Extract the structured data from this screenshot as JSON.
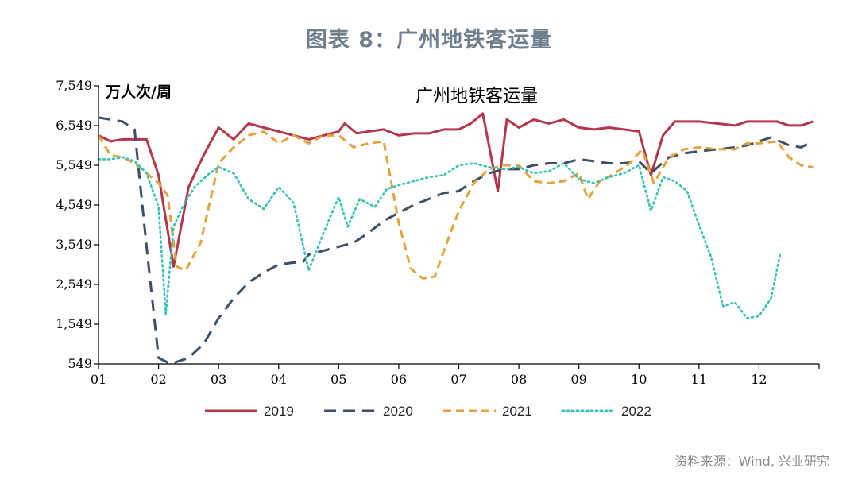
{
  "figure_title": "图表 8：广州地铁客运量",
  "source": "资料来源：Wind, 兴业研究",
  "chart_data": {
    "type": "line",
    "title": "广州地铁客运量",
    "ylabel": "万人次/周",
    "xlabel": "",
    "ylim": [
      549,
      7549
    ],
    "yticks": [
      549,
      1549,
      2549,
      3549,
      4549,
      5549,
      6549,
      7549
    ],
    "ytick_labels": [
      "549",
      "1,549",
      "2,549",
      "3,549",
      "4,549",
      "5,549",
      "6,549",
      "7,549"
    ],
    "xlim": [
      1,
      13
    ],
    "xticks": [
      1,
      2,
      3,
      4,
      5,
      6,
      7,
      8,
      9,
      10,
      11,
      12
    ],
    "xtick_labels": [
      "01",
      "02",
      "03",
      "04",
      "05",
      "06",
      "07",
      "08",
      "09",
      "10",
      "11",
      "12"
    ],
    "grid": false,
    "legend_position": "bottom",
    "series": [
      {
        "name": "2019",
        "color": "#b5364b",
        "dash": "solid",
        "x": [
          1.0,
          1.2,
          1.4,
          1.6,
          1.8,
          2.0,
          2.25,
          2.5,
          2.75,
          3.0,
          3.25,
          3.5,
          3.75,
          4.0,
          4.25,
          4.5,
          4.75,
          5.0,
          5.1,
          5.3,
          5.5,
          5.75,
          6.0,
          6.25,
          6.5,
          6.75,
          7.0,
          7.2,
          7.4,
          7.65,
          7.8,
          8.0,
          8.25,
          8.5,
          8.75,
          9.0,
          9.25,
          9.5,
          9.75,
          10.0,
          10.2,
          10.4,
          10.6,
          10.8,
          11.0,
          11.3,
          11.6,
          11.8,
          12.0,
          12.3,
          12.5,
          12.7,
          12.9
        ],
        "y": [
          6300,
          6150,
          6200,
          6200,
          6200,
          5300,
          3000,
          5000,
          5800,
          6500,
          6200,
          6600,
          6500,
          6400,
          6300,
          6200,
          6300,
          6400,
          6600,
          6350,
          6400,
          6450,
          6300,
          6350,
          6350,
          6450,
          6450,
          6600,
          6850,
          4900,
          6700,
          6500,
          6700,
          6600,
          6700,
          6500,
          6450,
          6500,
          6450,
          6400,
          5300,
          6300,
          6650,
          6650,
          6650,
          6600,
          6550,
          6650,
          6650,
          6650,
          6550,
          6550,
          6650
        ]
      },
      {
        "name": "2020",
        "color": "#3d4f66",
        "dash": "long-dash",
        "x": [
          1.0,
          1.2,
          1.4,
          1.6,
          1.8,
          2.0,
          2.2,
          2.5,
          2.75,
          3.0,
          3.25,
          3.5,
          3.75,
          4.0,
          4.25,
          4.4,
          4.5,
          4.75,
          5.0,
          5.25,
          5.5,
          5.75,
          6.0,
          6.25,
          6.5,
          6.75,
          7.0,
          7.25,
          7.5,
          7.75,
          8.0,
          8.25,
          8.5,
          8.75,
          9.0,
          9.25,
          9.5,
          9.75,
          10.0,
          10.2,
          10.5,
          10.75,
          11.0,
          11.3,
          11.6,
          11.8,
          12.0,
          12.2,
          12.5,
          12.7,
          12.9
        ],
        "y": [
          6750,
          6700,
          6650,
          6450,
          3500,
          700,
          550,
          700,
          1050,
          1700,
          2200,
          2600,
          2850,
          3050,
          3100,
          3100,
          3300,
          3400,
          3500,
          3600,
          3850,
          4150,
          4350,
          4550,
          4700,
          4850,
          4900,
          5150,
          5350,
          5450,
          5450,
          5550,
          5600,
          5600,
          5700,
          5650,
          5600,
          5600,
          5650,
          5350,
          5750,
          5850,
          5900,
          5950,
          6000,
          6050,
          6150,
          6250,
          6050,
          6000,
          6150
        ]
      },
      {
        "name": "2021",
        "color": "#e6a23c",
        "dash": "dash",
        "x": [
          1.0,
          1.2,
          1.4,
          1.6,
          1.8,
          2.0,
          2.15,
          2.3,
          2.45,
          2.7,
          3.0,
          3.25,
          3.5,
          3.75,
          4.0,
          4.25,
          4.5,
          4.75,
          5.0,
          5.25,
          5.5,
          5.75,
          6.0,
          6.2,
          6.4,
          6.6,
          6.8,
          7.0,
          7.25,
          7.5,
          7.75,
          8.0,
          8.25,
          8.5,
          8.75,
          9.0,
          9.15,
          9.35,
          9.6,
          9.85,
          10.05,
          10.25,
          10.5,
          10.75,
          11.0,
          11.3,
          11.6,
          11.8,
          12.0,
          12.3,
          12.5,
          12.7,
          12.9
        ],
        "y": [
          6300,
          5800,
          5750,
          5600,
          5350,
          5100,
          4800,
          3000,
          2900,
          3600,
          5600,
          6000,
          6300,
          6400,
          6100,
          6300,
          6100,
          6300,
          6300,
          6000,
          6100,
          6150,
          4100,
          2950,
          2700,
          2750,
          3600,
          4400,
          5100,
          5450,
          5550,
          5550,
          5150,
          5100,
          5150,
          5350,
          4700,
          5150,
          5350,
          5600,
          5950,
          5100,
          5750,
          5950,
          6000,
          5950,
          5950,
          6100,
          6100,
          6150,
          5750,
          5550,
          5500
        ]
      },
      {
        "name": "2022",
        "color": "#36c2b4",
        "dash": "dot",
        "x": [
          1.0,
          1.2,
          1.4,
          1.6,
          1.8,
          2.0,
          2.12,
          2.25,
          2.4,
          2.6,
          2.85,
          3.0,
          3.25,
          3.5,
          3.75,
          4.0,
          4.25,
          4.5,
          4.75,
          5.0,
          5.15,
          5.35,
          5.6,
          5.8,
          6.0,
          6.25,
          6.5,
          6.75,
          7.0,
          7.25,
          7.5,
          7.75,
          8.0,
          8.25,
          8.5,
          8.75,
          9.0,
          9.25,
          9.5,
          9.75,
          10.0,
          10.2,
          10.4,
          10.6,
          10.8,
          11.0,
          11.2,
          11.4,
          11.6,
          11.8,
          12.0,
          12.2,
          12.35
        ],
        "y": [
          5700,
          5700,
          5750,
          5650,
          5350,
          4500,
          1800,
          4000,
          4500,
          5000,
          5350,
          5500,
          5350,
          4700,
          4450,
          5000,
          4600,
          2900,
          3850,
          4750,
          4000,
          4700,
          4500,
          4950,
          5050,
          5150,
          5250,
          5300,
          5550,
          5600,
          5500,
          5450,
          5500,
          5350,
          5400,
          5600,
          5200,
          5100,
          5250,
          5350,
          5550,
          4400,
          5250,
          5150,
          4900,
          4050,
          3250,
          2000,
          2100,
          1700,
          1750,
          2200,
          3300
        ]
      }
    ]
  }
}
